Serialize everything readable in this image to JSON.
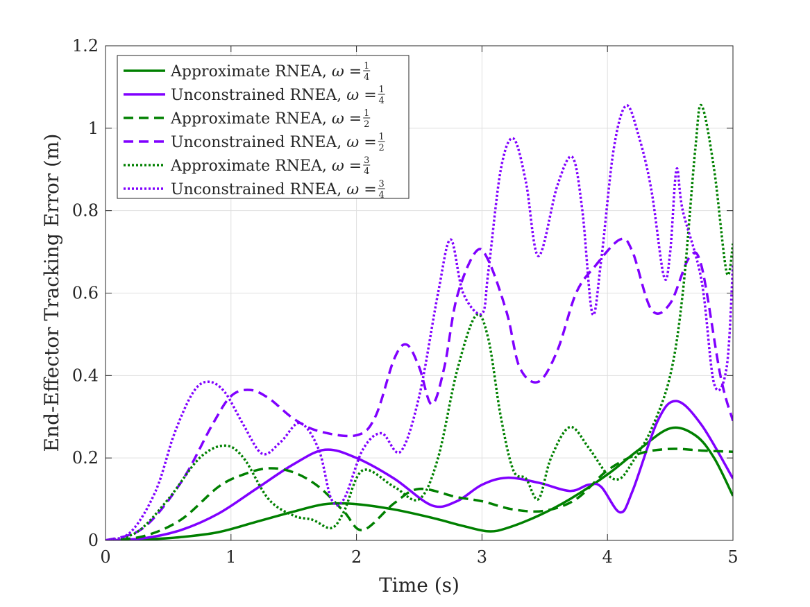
{
  "chart_data": {
    "type": "line",
    "xlabel": "Time (s)",
    "ylabel": "End-Effector Tracking Error (m)",
    "xlim": [
      0,
      5
    ],
    "ylim": [
      0,
      1.2
    ],
    "x_ticks": [
      "0",
      "1",
      "2",
      "3",
      "4",
      "5"
    ],
    "y_ticks": [
      "0",
      "0.2",
      "0.4",
      "0.6",
      "0.8",
      "1",
      "1.2"
    ],
    "grid": true,
    "legend_position": "top-left",
    "colors": {
      "approximate": "#008000",
      "unconstrained": "#8000ff"
    },
    "series": [
      {
        "name": "Approximate RNEA, ω = 1/4",
        "label_text": "Approximate RNEA,",
        "omega_num": "1",
        "omega_den": "4",
        "color": "#008000",
        "dash": "solid",
        "points": [
          [
            0,
            0
          ],
          [
            0.3,
            0.002
          ],
          [
            0.6,
            0.008
          ],
          [
            0.9,
            0.02
          ],
          [
            1.2,
            0.045
          ],
          [
            1.5,
            0.07
          ],
          [
            1.75,
            0.088
          ],
          [
            2.0,
            0.088
          ],
          [
            2.3,
            0.075
          ],
          [
            2.6,
            0.055
          ],
          [
            2.85,
            0.035
          ],
          [
            3.05,
            0.022
          ],
          [
            3.2,
            0.03
          ],
          [
            3.45,
            0.06
          ],
          [
            3.7,
            0.1
          ],
          [
            4.0,
            0.16
          ],
          [
            4.25,
            0.22
          ],
          [
            4.5,
            0.272
          ],
          [
            4.7,
            0.255
          ],
          [
            4.85,
            0.2
          ],
          [
            5.0,
            0.108
          ]
        ]
      },
      {
        "name": "Unconstrained RNEA, ω = 1/4",
        "label_text": "Unconstrained RNEA,",
        "omega_num": "1",
        "omega_den": "4",
        "color": "#8000ff",
        "dash": "solid",
        "points": [
          [
            0,
            0
          ],
          [
            0.3,
            0.005
          ],
          [
            0.6,
            0.025
          ],
          [
            0.9,
            0.065
          ],
          [
            1.2,
            0.125
          ],
          [
            1.5,
            0.185
          ],
          [
            1.75,
            0.22
          ],
          [
            2.0,
            0.2
          ],
          [
            2.3,
            0.15
          ],
          [
            2.6,
            0.085
          ],
          [
            2.8,
            0.095
          ],
          [
            3.0,
            0.135
          ],
          [
            3.2,
            0.152
          ],
          [
            3.45,
            0.14
          ],
          [
            3.7,
            0.12
          ],
          [
            3.85,
            0.135
          ],
          [
            3.95,
            0.13
          ],
          [
            4.1,
            0.068
          ],
          [
            4.2,
            0.12
          ],
          [
            4.4,
            0.29
          ],
          [
            4.55,
            0.338
          ],
          [
            4.75,
            0.28
          ],
          [
            5.0,
            0.15
          ]
        ]
      },
      {
        "name": "Approximate RNEA, ω = 1/2",
        "label_text": "Approximate RNEA,",
        "omega_num": "1",
        "omega_den": "2",
        "color": "#008000",
        "dash": "dashed",
        "points": [
          [
            0,
            0
          ],
          [
            0.3,
            0.01
          ],
          [
            0.6,
            0.05
          ],
          [
            0.9,
            0.13
          ],
          [
            1.1,
            0.16
          ],
          [
            1.3,
            0.175
          ],
          [
            1.5,
            0.165
          ],
          [
            1.7,
            0.13
          ],
          [
            1.9,
            0.07
          ],
          [
            2.05,
            0.025
          ],
          [
            2.3,
            0.09
          ],
          [
            2.5,
            0.125
          ],
          [
            2.8,
            0.105
          ],
          [
            3.0,
            0.095
          ],
          [
            3.25,
            0.075
          ],
          [
            3.5,
            0.072
          ],
          [
            3.75,
            0.1
          ],
          [
            4.0,
            0.17
          ],
          [
            4.25,
            0.21
          ],
          [
            4.5,
            0.222
          ],
          [
            4.75,
            0.218
          ],
          [
            5.0,
            0.215
          ]
        ]
      },
      {
        "name": "Unconstrained RNEA, ω = 1/2",
        "label_text": "Unconstrained RNEA,",
        "omega_num": "1",
        "omega_den": "2",
        "color": "#8000ff",
        "dash": "dashed",
        "points": [
          [
            0,
            0
          ],
          [
            0.3,
            0.03
          ],
          [
            0.6,
            0.14
          ],
          [
            0.85,
            0.28
          ],
          [
            1.0,
            0.35
          ],
          [
            1.15,
            0.365
          ],
          [
            1.3,
            0.345
          ],
          [
            1.5,
            0.295
          ],
          [
            1.7,
            0.265
          ],
          [
            2.0,
            0.255
          ],
          [
            2.15,
            0.3
          ],
          [
            2.3,
            0.44
          ],
          [
            2.4,
            0.475
          ],
          [
            2.5,
            0.42
          ],
          [
            2.6,
            0.33
          ],
          [
            2.7,
            0.42
          ],
          [
            2.8,
            0.59
          ],
          [
            2.95,
            0.7
          ],
          [
            3.05,
            0.68
          ],
          [
            3.2,
            0.55
          ],
          [
            3.3,
            0.42
          ],
          [
            3.45,
            0.385
          ],
          [
            3.6,
            0.46
          ],
          [
            3.75,
            0.6
          ],
          [
            3.9,
            0.665
          ],
          [
            4.1,
            0.73
          ],
          [
            4.2,
            0.7
          ],
          [
            4.35,
            0.56
          ],
          [
            4.5,
            0.575
          ],
          [
            4.65,
            0.685
          ],
          [
            4.75,
            0.665
          ],
          [
            4.9,
            0.4
          ],
          [
            5.0,
            0.29
          ]
        ]
      },
      {
        "name": "Approximate RNEA, ω = 3/4",
        "label_text": "Approximate RNEA,",
        "omega_num": "3",
        "omega_den": "4",
        "color": "#008000",
        "dash": "dotted",
        "points": [
          [
            0,
            0
          ],
          [
            0.25,
            0.02
          ],
          [
            0.5,
            0.1
          ],
          [
            0.75,
            0.2
          ],
          [
            0.95,
            0.23
          ],
          [
            1.1,
            0.2
          ],
          [
            1.3,
            0.1
          ],
          [
            1.5,
            0.06
          ],
          [
            1.65,
            0.05
          ],
          [
            1.8,
            0.03
          ],
          [
            1.9,
            0.07
          ],
          [
            2.05,
            0.17
          ],
          [
            2.3,
            0.13
          ],
          [
            2.5,
            0.1
          ],
          [
            2.65,
            0.2
          ],
          [
            2.8,
            0.41
          ],
          [
            2.95,
            0.545
          ],
          [
            3.05,
            0.49
          ],
          [
            3.15,
            0.3
          ],
          [
            3.25,
            0.17
          ],
          [
            3.35,
            0.15
          ],
          [
            3.45,
            0.1
          ],
          [
            3.55,
            0.2
          ],
          [
            3.7,
            0.275
          ],
          [
            3.85,
            0.225
          ],
          [
            4.0,
            0.16
          ],
          [
            4.1,
            0.15
          ],
          [
            4.2,
            0.19
          ],
          [
            4.35,
            0.27
          ],
          [
            4.5,
            0.4
          ],
          [
            4.6,
            0.6
          ],
          [
            4.7,
            0.95
          ],
          [
            4.75,
            1.055
          ],
          [
            4.85,
            0.9
          ],
          [
            4.95,
            0.65
          ],
          [
            5.0,
            0.72
          ]
        ]
      },
      {
        "name": "Unconstrained RNEA, ω = 3/4",
        "label_text": "Unconstrained RNEA,",
        "omega_num": "3",
        "omega_den": "4",
        "color": "#8000ff",
        "dash": "dotted",
        "points": [
          [
            0,
            0
          ],
          [
            0.2,
            0.02
          ],
          [
            0.4,
            0.12
          ],
          [
            0.55,
            0.26
          ],
          [
            0.7,
            0.36
          ],
          [
            0.82,
            0.385
          ],
          [
            0.95,
            0.36
          ],
          [
            1.1,
            0.28
          ],
          [
            1.25,
            0.21
          ],
          [
            1.4,
            0.24
          ],
          [
            1.55,
            0.285
          ],
          [
            1.7,
            0.22
          ],
          [
            1.8,
            0.1
          ],
          [
            1.9,
            0.1
          ],
          [
            2.05,
            0.22
          ],
          [
            2.2,
            0.26
          ],
          [
            2.35,
            0.215
          ],
          [
            2.5,
            0.35
          ],
          [
            2.65,
            0.6
          ],
          [
            2.75,
            0.73
          ],
          [
            2.85,
            0.6
          ],
          [
            3.0,
            0.55
          ],
          [
            3.05,
            0.65
          ],
          [
            3.15,
            0.9
          ],
          [
            3.25,
            0.975
          ],
          [
            3.35,
            0.87
          ],
          [
            3.45,
            0.69
          ],
          [
            3.6,
            0.86
          ],
          [
            3.72,
            0.93
          ],
          [
            3.8,
            0.8
          ],
          [
            3.88,
            0.55
          ],
          [
            3.95,
            0.68
          ],
          [
            4.05,
            0.95
          ],
          [
            4.15,
            1.055
          ],
          [
            4.25,
            0.98
          ],
          [
            4.35,
            0.85
          ],
          [
            4.45,
            0.64
          ],
          [
            4.5,
            0.7
          ],
          [
            4.55,
            0.9
          ],
          [
            4.6,
            0.8
          ],
          [
            4.75,
            0.63
          ],
          [
            4.85,
            0.38
          ],
          [
            4.95,
            0.42
          ],
          [
            5.0,
            0.67
          ]
        ]
      }
    ]
  }
}
